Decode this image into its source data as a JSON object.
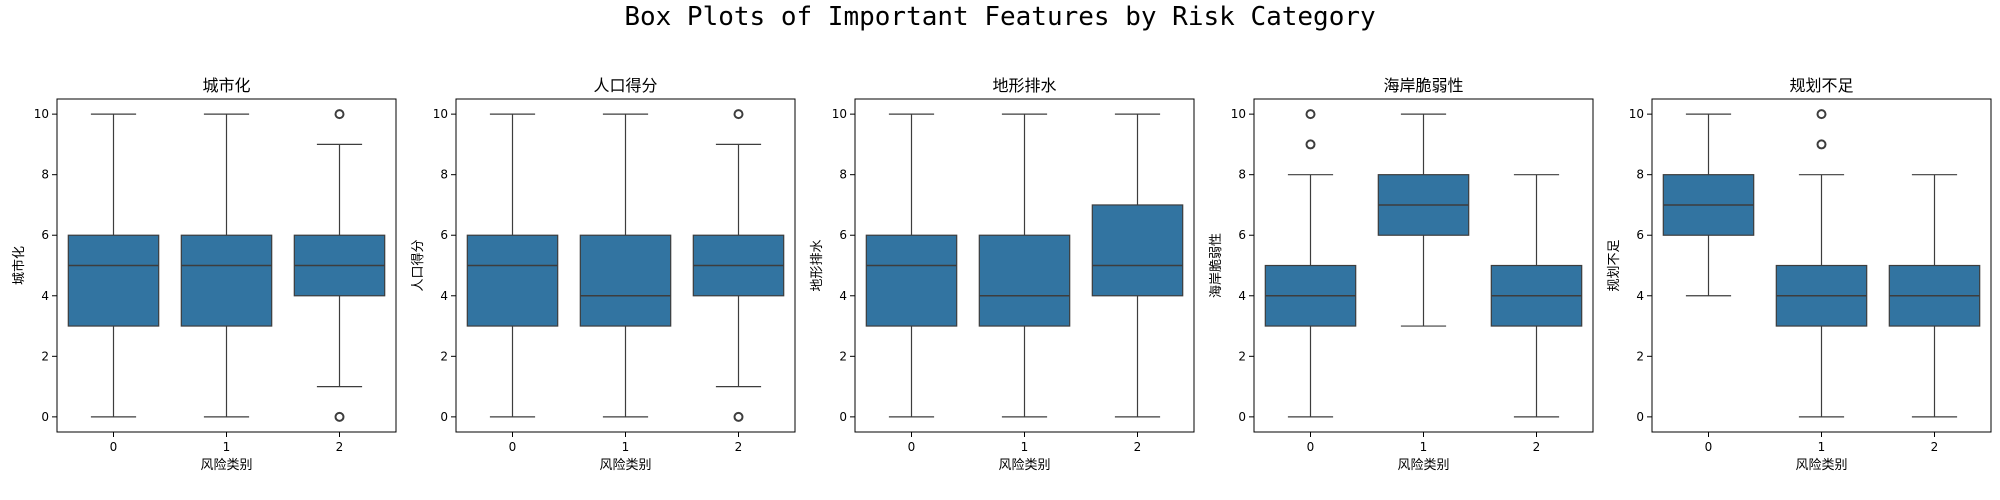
{
  "suptitle": "Box Plots of Important Features by Risk Category",
  "chart_data": [
    {
      "type": "box",
      "title": "城市化",
      "xlabel": "风险类别",
      "ylabel": "城市化",
      "categories": [
        "0",
        "1",
        "2"
      ],
      "ylim": [
        -0.5,
        10.5
      ],
      "yticks": [
        0,
        2,
        4,
        6,
        8,
        10
      ],
      "boxes": [
        {
          "category": "0",
          "whisker_low": 0,
          "q1": 3,
          "median": 5,
          "q3": 6,
          "whisker_high": 10,
          "outliers": []
        },
        {
          "category": "1",
          "whisker_low": 0,
          "q1": 3,
          "median": 5,
          "q3": 6,
          "whisker_high": 10,
          "outliers": []
        },
        {
          "category": "2",
          "whisker_low": 1,
          "q1": 4,
          "median": 5,
          "q3": 6,
          "whisker_high": 9,
          "outliers": [
            0,
            10
          ]
        }
      ]
    },
    {
      "type": "box",
      "title": "人口得分",
      "xlabel": "风险类别",
      "ylabel": "人口得分",
      "categories": [
        "0",
        "1",
        "2"
      ],
      "ylim": [
        -0.5,
        10.5
      ],
      "yticks": [
        0,
        2,
        4,
        6,
        8,
        10
      ],
      "boxes": [
        {
          "category": "0",
          "whisker_low": 0,
          "q1": 3,
          "median": 5,
          "q3": 6,
          "whisker_high": 10,
          "outliers": []
        },
        {
          "category": "1",
          "whisker_low": 0,
          "q1": 3,
          "median": 4,
          "q3": 6,
          "whisker_high": 10,
          "outliers": []
        },
        {
          "category": "2",
          "whisker_low": 1,
          "q1": 4,
          "median": 5,
          "q3": 6,
          "whisker_high": 9,
          "outliers": [
            0,
            10
          ]
        }
      ]
    },
    {
      "type": "box",
      "title": "地形排水",
      "xlabel": "风险类别",
      "ylabel": "地形排水",
      "categories": [
        "0",
        "1",
        "2"
      ],
      "ylim": [
        -0.5,
        10.5
      ],
      "yticks": [
        0,
        2,
        4,
        6,
        8,
        10
      ],
      "boxes": [
        {
          "category": "0",
          "whisker_low": 0,
          "q1": 3,
          "median": 5,
          "q3": 6,
          "whisker_high": 10,
          "outliers": []
        },
        {
          "category": "1",
          "whisker_low": 0,
          "q1": 3,
          "median": 4,
          "q3": 6,
          "whisker_high": 10,
          "outliers": []
        },
        {
          "category": "2",
          "whisker_low": 0,
          "q1": 4,
          "median": 5,
          "q3": 7,
          "whisker_high": 10,
          "outliers": []
        }
      ]
    },
    {
      "type": "box",
      "title": "海岸脆弱性",
      "xlabel": "风险类别",
      "ylabel": "海岸脆弱性",
      "categories": [
        "0",
        "1",
        "2"
      ],
      "ylim": [
        -0.5,
        10.5
      ],
      "yticks": [
        0,
        2,
        4,
        6,
        8,
        10
      ],
      "boxes": [
        {
          "category": "0",
          "whisker_low": 0,
          "q1": 3,
          "median": 4,
          "q3": 5,
          "whisker_high": 8,
          "outliers": [
            9,
            10
          ]
        },
        {
          "category": "1",
          "whisker_low": 3,
          "q1": 6,
          "median": 7,
          "q3": 8,
          "whisker_high": 10,
          "outliers": []
        },
        {
          "category": "2",
          "whisker_low": 0,
          "q1": 3,
          "median": 4,
          "q3": 5,
          "whisker_high": 8,
          "outliers": []
        }
      ]
    },
    {
      "type": "box",
      "title": "规划不足",
      "xlabel": "风险类别",
      "ylabel": "规划不足",
      "categories": [
        "0",
        "1",
        "2"
      ],
      "ylim": [
        -0.5,
        10.5
      ],
      "yticks": [
        0,
        2,
        4,
        6,
        8,
        10
      ],
      "boxes": [
        {
          "category": "0",
          "whisker_low": 4,
          "q1": 6,
          "median": 7,
          "q3": 8,
          "whisker_high": 10,
          "outliers": []
        },
        {
          "category": "1",
          "whisker_low": 0,
          "q1": 3,
          "median": 4,
          "q3": 5,
          "whisker_high": 8,
          "outliers": [
            9,
            10
          ]
        },
        {
          "category": "2",
          "whisker_low": 0,
          "q1": 3,
          "median": 4,
          "q3": 5,
          "whisker_high": 8,
          "outliers": []
        }
      ]
    }
  ],
  "colors": {
    "box_fill": "#3274a1",
    "line": "#3d3d3d",
    "axis": "#000000",
    "text": "#000000"
  }
}
